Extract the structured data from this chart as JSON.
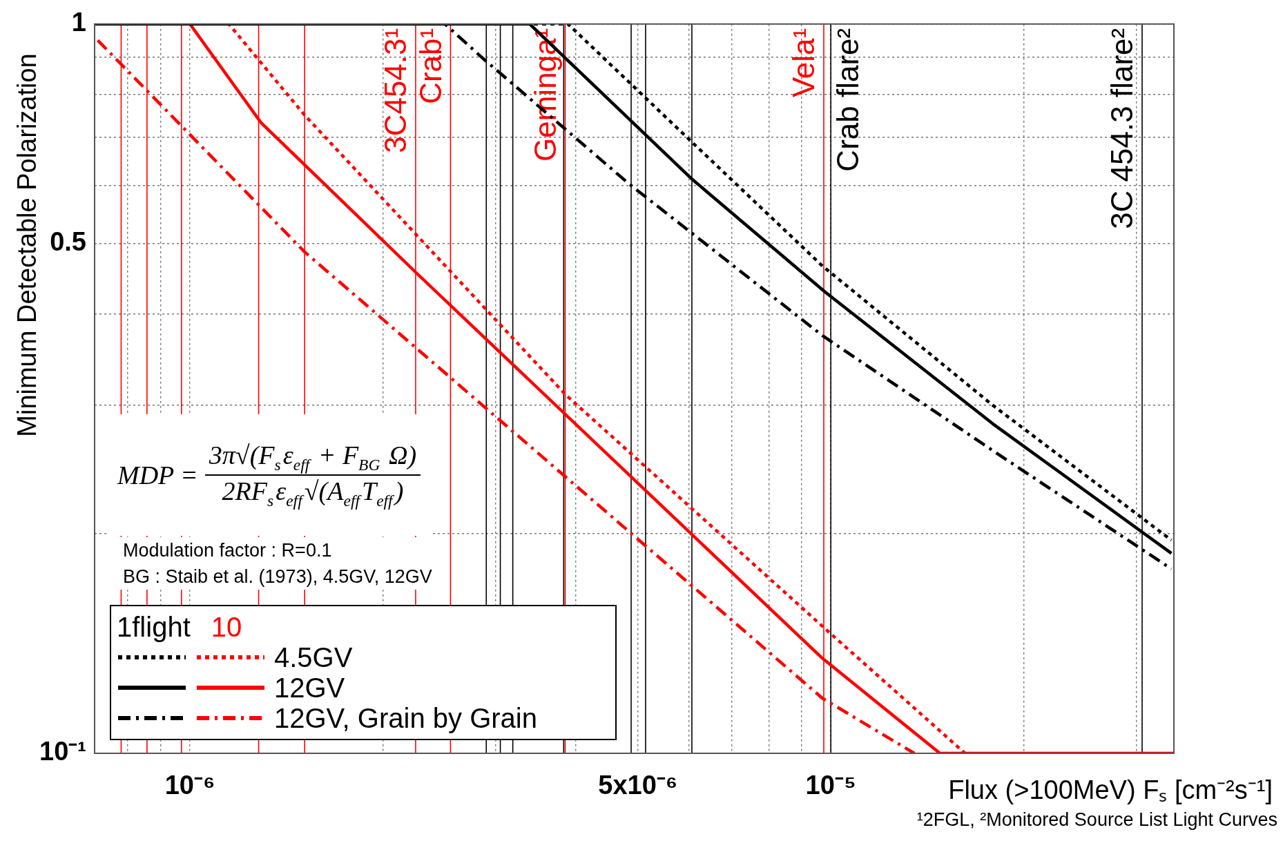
{
  "chart_data": {
    "type": "line",
    "xlabel": "Flux (>100MeV) Fₛ [cm⁻²s⁻¹]",
    "ylabel": "Minimum Detectable Polarization",
    "legend_title": "1flight",
    "annotations": [
      "10",
      "Modulation factor : R=0.1",
      "BG : Staib et al. (1973), 4.5GV, 12GV",
      "¹2FGL, ²Monitored Source List Light Curves",
      "MDP =",
      "3π√(F$_{s}$ε$_{eff}$ + F$_{BG}$ Ω)",
      "2RF$_{s}$ε$_{eff}$√(A$_{eff}$T$_{eff}$)"
    ],
    "log": "xy",
    "grid": true,
    "legend": "bottom left",
    "xlim": [
      7.1e-07,
      3.43e-05
    ],
    "xticks": [
      {
        "value": 8e-07,
        "label": null
      },
      {
        "value": 9e-07,
        "label": null
      },
      {
        "value": 1e-06,
        "label": "10⁻⁶"
      },
      {
        "value": 2e-06,
        "label": null
      },
      {
        "value": 3e-06,
        "label": null
      },
      {
        "value": 4e-06,
        "label": null
      },
      {
        "value": 5e-06,
        "label": "5x10⁻⁶"
      },
      {
        "value": 6e-06,
        "label": null
      },
      {
        "value": 7e-06,
        "label": null
      },
      {
        "value": 8e-06,
        "label": null
      },
      {
        "value": 9e-06,
        "label": null
      },
      {
        "value": 1e-05,
        "label": "10⁻⁵"
      },
      {
        "value": 2e-05,
        "label": null
      },
      {
        "value": 3e-05,
        "label": null
      }
    ],
    "ylim": [
      0.1,
      1
    ],
    "yticks": [
      {
        "value": 0.1,
        "label": "10⁻¹"
      },
      {
        "value": 0.2,
        "label": null
      },
      {
        "value": 0.3,
        "label": null
      },
      {
        "value": 0.4,
        "label": null
      },
      0.5,
      {
        "value": 0.6,
        "label": null
      },
      {
        "value": 0.7,
        "label": null
      },
      {
        "value": 0.8,
        "label": null
      },
      {
        "value": 0.9,
        "label": null
      },
      1
    ],
    "series": [
      {
        "color": "#000000",
        "line_style": "dotted",
        "x": [
          7.1e-07,
          3.89e-06,
          6.07e-06,
          9.7e-06,
          1.79e-05,
          3.4e-05
        ],
        "values": [
          1,
          1,
          0.689,
          0.466,
          0.3,
          0.196
        ]
      },
      {
        "name": "4.5GV",
        "color": "#ff0000",
        "line_style": "dotted",
        "x": [
          7.1e-07,
          1.15e-06,
          1.51e-06,
          3.86e-06,
          9.9e-06,
          1.62e-05
        ],
        "values": [
          1,
          1,
          0.75,
          0.31,
          0.147,
          0.1
        ]
      },
      {
        "color": "#000000",
        "line_style": "solid",
        "x": [
          7.1e-07,
          3.39e-06,
          6.07e-06,
          9.8e-06,
          1.79e-05,
          3.4e-05
        ],
        "values": [
          1,
          1,
          0.613,
          0.429,
          0.283,
          0.188
        ]
      },
      {
        "name": "12GV",
        "color": "#ff0000",
        "line_style": "solid",
        "x": [
          7.1e-07,
          1e-06,
          1.29e-06,
          2.26e-06,
          9.7e-06,
          1.48e-05,
          3.43e-05
        ],
        "values": [
          1,
          1,
          0.733,
          0.455,
          0.135,
          0.1,
          0.1
        ]
      },
      {
        "color": "#000000",
        "line_style": "dashed",
        "x": [
          7.1e-07,
          2.5e-06,
          2.87e-06,
          4.84e-06,
          9.7e-06,
          1.79e-05,
          3.4e-05
        ],
        "values": [
          1,
          1,
          0.896,
          0.604,
          0.374,
          0.26,
          0.179
        ]
      },
      {
        "name": "12GV, Grain by Grain",
        "color": "#ff0000",
        "line_style": "dashed",
        "x": [
          7.18e-07,
          1.51e-06,
          9.7e-06,
          1.35e-05
        ],
        "values": [
          0.95,
          0.487,
          0.119,
          0.1
        ]
      }
    ],
    "ref_lines": [
      {
        "axis": "x",
        "value": 7.81e-07,
        "color": "#ff0000"
      },
      {
        "axis": "x",
        "value": 8.57e-07,
        "color": "#ff0000"
      },
      {
        "axis": "x",
        "value": 9.7e-07,
        "color": "#ff0000"
      },
      {
        "axis": "x",
        "value": 1.28e-06,
        "color": "#ff0000"
      },
      {
        "axis": "x",
        "value": 1.51e-06,
        "color": "#ff0000"
      },
      {
        "axis": "x",
        "value": 2.25e-06,
        "color": "#ff0000",
        "label": "3C454.3¹"
      },
      {
        "axis": "x",
        "value": 2.55e-06,
        "color": "#ff0000",
        "label": "Crab¹"
      },
      {
        "axis": "x",
        "value": 2.9e-06,
        "color": "#000000"
      },
      {
        "axis": "x",
        "value": 3.05e-06,
        "color": "#000000"
      },
      {
        "axis": "x",
        "value": 3.19e-06,
        "color": "#000000"
      },
      {
        "axis": "x",
        "value": 3.83e-06,
        "color": "#000000"
      },
      {
        "axis": "x",
        "value": 3.85e-06,
        "color": "#ff0000",
        "label": "Geminga¹"
      },
      {
        "axis": "x",
        "value": 4.88e-06,
        "color": "#000000"
      },
      {
        "axis": "x",
        "value": 5.14e-06,
        "color": "#000000"
      },
      {
        "axis": "x",
        "value": 6.07e-06,
        "color": "#000000"
      },
      {
        "axis": "x",
        "value": 9.75e-06,
        "color": "#ff0000",
        "label": "Vela¹"
      },
      {
        "axis": "x",
        "value": 1e-05,
        "color": "#000000",
        "label": "Crab flare²"
      },
      {
        "axis": "x",
        "value": 3.06e-05,
        "color": "#000000",
        "label": "3C 454.3 flare²"
      }
    ]
  }
}
